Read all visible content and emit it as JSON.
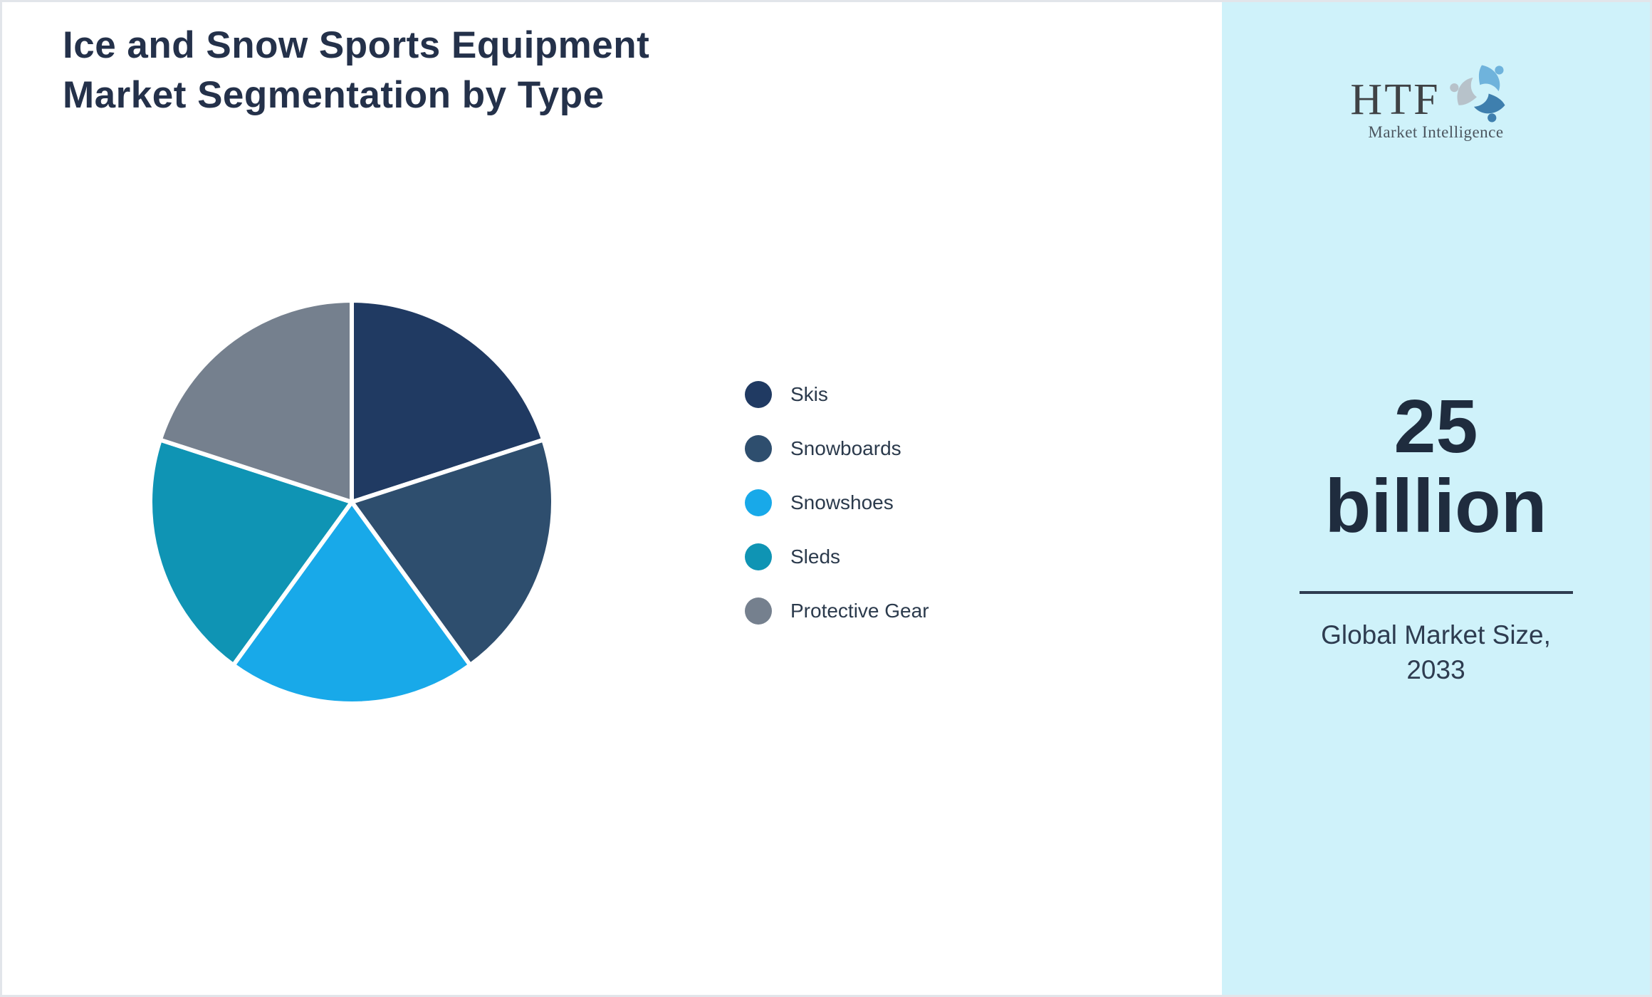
{
  "page": {
    "title_line1": "Ice and Snow Sports Equipment",
    "title_line2": "Market Segmentation by Type"
  },
  "chart_data": {
    "type": "pie",
    "title": "Ice and Snow Sports Equipment Market Segmentation by Type",
    "categories": [
      "Skis",
      "Snowboards",
      "Snowshoes",
      "Sleds",
      "Protective Gear"
    ],
    "values": [
      20,
      20,
      20,
      20,
      20
    ],
    "values_unit": "percent-share (equal slices, read from chart)",
    "colors": [
      "#203a62",
      "#2e4e6e",
      "#18a9e9",
      "#0f94b4",
      "#75808e"
    ],
    "separator_color": "#ffffff",
    "start_angle_deg": -90,
    "direction": "clockwise",
    "legend_position": "right",
    "data_labels": "none"
  },
  "sidebar": {
    "background": "#cff2fa",
    "logo": {
      "text": "HTF",
      "subtext": "Market Intelligence",
      "mark_colors": [
        "#6fb3dc",
        "#3e7fae",
        "#b7c2ca"
      ]
    },
    "stat_value_line1": "25",
    "stat_value_line2": "billion",
    "stat_label_line1": "Global Market Size,",
    "stat_label_line2": "2033"
  }
}
